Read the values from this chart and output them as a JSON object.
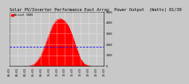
{
  "title": "Solar PV/Inverter Performance East Array  Power Output  (Watts) 01/30",
  "legend_actual": "Actual 5000",
  "bg_color": "#c8c8c8",
  "plot_bg": "#c8c8c8",
  "fill_color": "#ff0000",
  "line_color": "#ff0000",
  "avg_color": "#0000ff",
  "grid_color": "#ffffff",
  "hours": [
    0,
    1,
    2,
    3,
    4,
    5,
    6,
    7,
    8,
    9,
    10,
    11,
    12,
    13,
    14,
    15,
    16,
    17,
    18,
    19,
    20,
    21,
    22,
    23,
    24
  ],
  "actual_power": [
    0,
    0,
    0,
    0,
    0,
    10,
    120,
    450,
    1000,
    1900,
    2900,
    3800,
    4300,
    4400,
    4200,
    3700,
    2800,
    1700,
    700,
    200,
    40,
    0,
    0,
    0,
    0
  ],
  "avg_power": 1800,
  "ylim": [
    0,
    5000
  ],
  "xlim": [
    0,
    24
  ],
  "title_fontsize": 3.8,
  "tick_fontsize": 2.5
}
